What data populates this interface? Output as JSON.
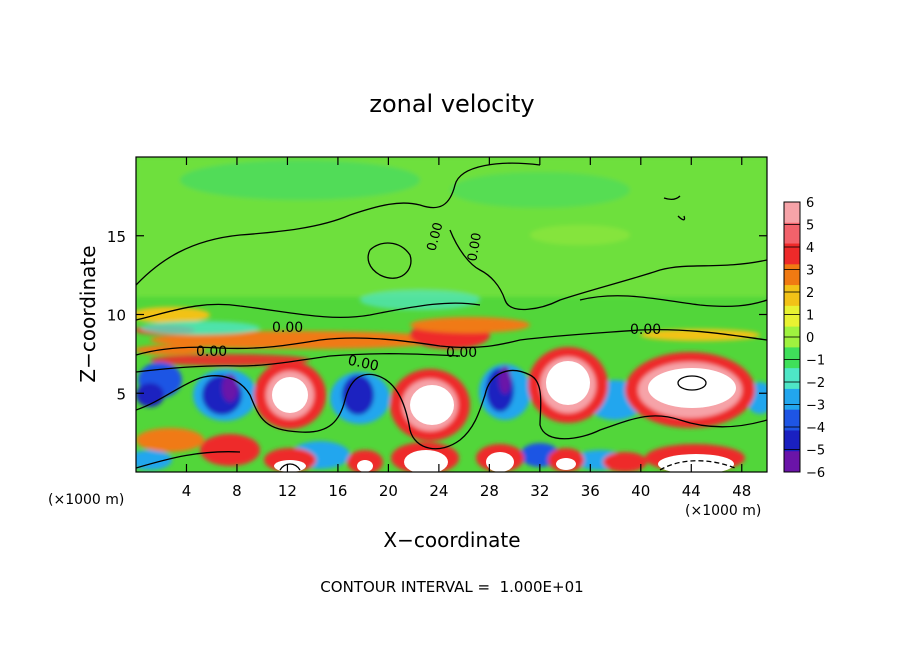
{
  "chart_data": {
    "type": "heatmap",
    "title": "zonal velocity",
    "xlabel": "X−coordinate",
    "ylabel": "Z−coordinate",
    "x_unit_left": "(×1000 m)",
    "x_unit_right": "(×1000 m)",
    "xlim": [
      0,
      50
    ],
    "ylim": [
      0,
      20
    ],
    "x_ticks": [
      4,
      8,
      12,
      16,
      20,
      24,
      28,
      32,
      36,
      40,
      44,
      48
    ],
    "y_ticks": [
      5,
      10,
      15
    ],
    "colorbar": {
      "levels": [
        6,
        5,
        4,
        3,
        2,
        1,
        0,
        -1,
        -2,
        -3,
        -4,
        -5,
        -6
      ],
      "labels": [
        "6",
        "5",
        "4",
        "3",
        "2",
        "1",
        "0",
        "−1",
        "−2",
        "−3",
        "−4",
        "−5",
        "−6"
      ],
      "colors": [
        "#f6a3a8",
        "#f2626b",
        "#ee2a2a",
        "#f07a12",
        "#f2c217",
        "#e8f232",
        "#9ff23f",
        "#3fe05a",
        "#4ee6c6",
        "#22a6ee",
        "#1e55e4",
        "#1a20c0",
        "#6a14a8"
      ]
    },
    "contour_labels": [
      "0.00",
      "0.00",
      "0.00",
      "0.00",
      "0.00",
      "0.00",
      "0.00"
    ],
    "annotation": "CONTOUR INTERVAL =  1.000E+01"
  }
}
